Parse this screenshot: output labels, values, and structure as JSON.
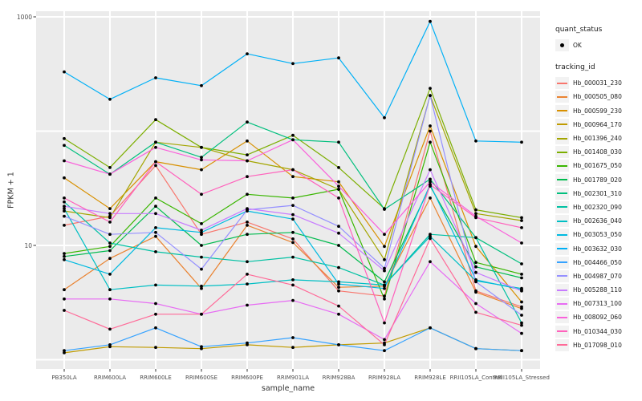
{
  "figure": {
    "panel_background": "#EBEBEB",
    "gridline_color": "#FFFFFF",
    "point_color": "#000000",
    "tick_color": "#333333"
  },
  "y_axis": {
    "title": "FPKM + 1",
    "scale": "log10",
    "tick_labels": [
      "1000",
      "10"
    ],
    "tick_values": [
      1000,
      10
    ],
    "gridline_values": [
      1000,
      100,
      10,
      1
    ]
  },
  "x_axis": {
    "title": "sample_name"
  },
  "legend": {
    "quant_status": {
      "title": "quant_status",
      "items": [
        {
          "label": "OK",
          "symbol": "point"
        }
      ]
    },
    "tracking_id": {
      "title": "tracking_id"
    }
  },
  "chart_data": {
    "type": "line",
    "title": "",
    "xlabel": "sample_name",
    "ylabel": "FPKM + 1",
    "yscale": "log10",
    "ylim": [
      1,
      1000
    ],
    "grid": true,
    "legend_position": "right",
    "marker": "black-point",
    "categories": [
      "PB350LA",
      "RRIM600LA",
      "RRIM600LE",
      "RRIM600SE",
      "RRIM600PE",
      "RRIM901LA",
      "RRIM928BA",
      "RRIM928LA",
      "RRIM928LE",
      "RRII105LA_Control",
      "RRII105LA_Stressed"
    ],
    "series": [
      {
        "tracking_id": "Hb_000031_230",
        "color": "#F8766D",
        "values": [
          15,
          18,
          50,
          12.5,
          16,
          11.4,
          4.0,
          3.6,
          100,
          4.0,
          2.9
        ]
      },
      {
        "tracking_id": "Hb_000505_080",
        "color": "#EA8331",
        "values": [
          4.1,
          7.7,
          12,
          4.2,
          15,
          10.6,
          4.3,
          4.4,
          26,
          3.9,
          2.8
        ]
      },
      {
        "tracking_id": "Hb_000599_230",
        "color": "#D89000",
        "values": [
          39,
          21,
          54,
          46,
          82,
          40,
          36,
          9.8,
          111,
          9.8,
          3.2
        ]
      },
      {
        "tracking_id": "Hb_000964_170",
        "color": "#C09B00",
        "values": [
          1.15,
          1.3,
          1.28,
          1.25,
          1.35,
          1.28,
          1.35,
          1.4,
          1.9,
          1.25,
          1.2
        ]
      },
      {
        "tracking_id": "Hb_001396_240",
        "color": "#A3A500",
        "values": [
          20,
          17.5,
          80,
          72,
          55,
          46,
          31,
          7.5,
          205,
          19,
          16.5
        ]
      },
      {
        "tracking_id": "Hb_001408_030",
        "color": "#7CAE00",
        "values": [
          86,
          48,
          126,
          72,
          62,
          92,
          48,
          21,
          237,
          20.5,
          17.5
        ]
      },
      {
        "tracking_id": "Hb_001675_050",
        "color": "#39B600",
        "values": [
          8.5,
          9.8,
          26,
          15.5,
          28,
          26,
          31,
          3.4,
          80,
          7.1,
          5.6
        ]
      },
      {
        "tracking_id": "Hb_001789_020",
        "color": "#00BB4E",
        "values": [
          8.0,
          9.0,
          22,
          10,
          12.5,
          13,
          10,
          4.8,
          33,
          6.5,
          5.2
        ]
      },
      {
        "tracking_id": "Hb_002301_310",
        "color": "#00BF7D",
        "values": [
          75,
          42,
          80,
          59,
          120,
          84,
          80,
          20.7,
          38,
          11.7,
          6.9
        ]
      },
      {
        "tracking_id": "Hb_002320_090",
        "color": "#00C1A3",
        "values": [
          24,
          10.5,
          8.8,
          7.9,
          7.2,
          7.9,
          6.4,
          4.5,
          12.5,
          11.7,
          2.1
        ]
      },
      {
        "tracking_id": "Hb_002636_040",
        "color": "#00BFC4",
        "values": [
          21,
          4.1,
          4.5,
          4.4,
          4.6,
          5.0,
          4.8,
          4.5,
          12,
          4.9,
          4.2
        ]
      },
      {
        "tracking_id": "Hb_003053_050",
        "color": "#00BAE0",
        "values": [
          7.5,
          5.6,
          14.3,
          13,
          20,
          17,
          4.6,
          4.2,
          34,
          5.0,
          4.1
        ]
      },
      {
        "tracking_id": "Hb_003632_030",
        "color": "#00B0F6",
        "values": [
          330,
          190,
          293,
          250,
          475,
          390,
          437,
          131,
          912,
          82,
          80
        ]
      },
      {
        "tracking_id": "Hb_004466_050",
        "color": "#35A2FF",
        "values": [
          1.2,
          1.35,
          1.9,
          1.3,
          1.4,
          1.56,
          1.35,
          1.2,
          1.9,
          1.25,
          1.2
        ]
      },
      {
        "tracking_id": "Hb_004987_070",
        "color": "#9590FF",
        "values": [
          18,
          12.5,
          13,
          6.2,
          20.5,
          22.4,
          14.7,
          6.3,
          205,
          4.8,
          2.45
        ]
      },
      {
        "tracking_id": "Hb_005288_110",
        "color": "#C77CFF",
        "values": [
          22,
          19,
          19,
          13.6,
          21,
          18.6,
          12.8,
          6.0,
          46,
          5.8,
          4.0
        ]
      },
      {
        "tracking_id": "Hb_007313_100",
        "color": "#E76BF3",
        "values": [
          3.4,
          3.4,
          3.1,
          2.5,
          3.0,
          3.3,
          2.5,
          1.5,
          7.2,
          3.1,
          1.7
        ]
      },
      {
        "tracking_id": "Hb_008092_060",
        "color": "#FA62DB",
        "values": [
          55,
          42,
          72,
          56,
          55,
          84,
          33,
          12.5,
          36,
          18,
          10.5
        ]
      },
      {
        "tracking_id": "Hb_010344_030",
        "color": "#FF62BC",
        "values": [
          26,
          16,
          54,
          28,
          40,
          46,
          26,
          2.1,
          34,
          17.5,
          14.3
        ]
      },
      {
        "tracking_id": "Hb_017098_010",
        "color": "#FF6A98",
        "values": [
          2.7,
          1.85,
          2.5,
          2.5,
          5.6,
          4.5,
          2.95,
          1.35,
          11.5,
          2.6,
          2.0
        ]
      }
    ]
  }
}
